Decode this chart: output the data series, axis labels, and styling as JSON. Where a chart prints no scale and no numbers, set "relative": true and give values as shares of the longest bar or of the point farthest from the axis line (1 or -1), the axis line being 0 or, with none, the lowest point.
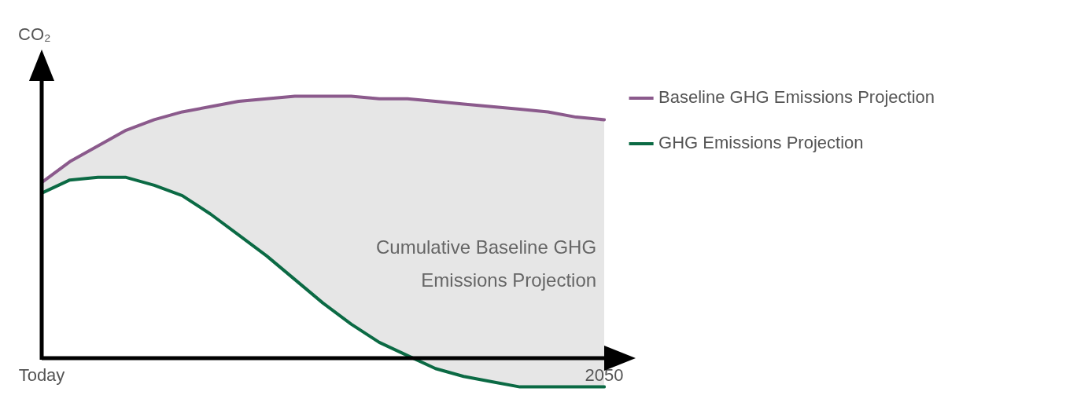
{
  "chart_data": {
    "type": "line",
    "relative": true,
    "ylabel": "CO₂",
    "legend": "right",
    "annotations": [
      "Cumulative Baseline GHG Emissions Projection"
    ],
    "categories": [
      "Today",
      null,
      null,
      null,
      null,
      null,
      null,
      null,
      null,
      null,
      null,
      null,
      null,
      null,
      null,
      null,
      null,
      null,
      null,
      null,
      "2050"
    ],
    "series": [
      {
        "name": "Baseline GHG Emissions Projection",
        "color": "#8b5a8c",
        "values": [
          0.67,
          0.75,
          0.81,
          0.87,
          0.91,
          0.94,
          0.96,
          0.98,
          0.99,
          1.0,
          1.0,
          1.0,
          0.99,
          0.99,
          0.98,
          0.97,
          0.96,
          0.95,
          0.94,
          0.92,
          0.91
        ],
        "lower": [
          0.63,
          0.68,
          0.69,
          0.69,
          0.66,
          0.62,
          0.55,
          0.47,
          0.39,
          0.3,
          0.21,
          0.13,
          0.06,
          0.01,
          -0.04,
          -0.07,
          -0.09,
          -0.11,
          -0.11,
          -0.11,
          -0.11
        ],
        "upper": [
          0.67,
          0.75,
          0.81,
          0.87,
          0.91,
          0.94,
          0.96,
          0.98,
          0.99,
          1.0,
          1.0,
          1.0,
          0.99,
          0.99,
          0.98,
          0.97,
          0.96,
          0.95,
          0.94,
          0.92,
          0.91
        ]
      },
      {
        "name": "GHG Emissions Projection",
        "color": "#0b6a44",
        "values": [
          0.63,
          0.68,
          0.69,
          0.69,
          0.66,
          0.62,
          0.55,
          0.47,
          0.39,
          0.3,
          0.21,
          0.13,
          0.06,
          0.01,
          -0.04,
          -0.07,
          -0.09,
          -0.11,
          -0.11,
          -0.11,
          -0.11
        ]
      }
    ]
  }
}
